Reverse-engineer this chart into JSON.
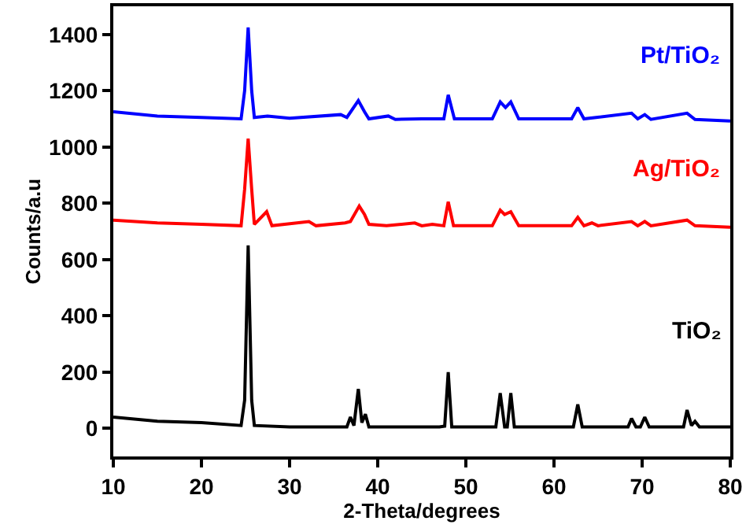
{
  "chart_data": {
    "type": "line",
    "xlabel": "2-Theta/degrees",
    "ylabel": "Counts/a.u",
    "xlim": [
      10,
      80
    ],
    "xticks": [
      10,
      20,
      30,
      40,
      50,
      60,
      70,
      80
    ],
    "ylim": [
      -100,
      1500
    ],
    "yticks": [
      0,
      200,
      400,
      600,
      800,
      1000,
      1200,
      1400
    ],
    "legend": false,
    "marker": "none",
    "line_style": "solid",
    "series": [
      {
        "name": "Pt/TiO₂",
        "color": "#0000ff",
        "x": [
          10,
          15,
          20,
          24.5,
          24.9,
          25.3,
          25.7,
          26,
          27.5,
          30,
          35.8,
          36.5,
          37.8,
          38.5,
          39,
          41.2,
          42,
          45,
          47.5,
          48,
          48.7,
          53,
          53.9,
          54.5,
          55.1,
          56,
          62,
          62.7,
          63.4,
          68.8,
          69.5,
          70.3,
          71,
          75.1,
          76,
          80
        ],
        "values": [
          1125,
          1110,
          1105,
          1100,
          1200,
          1425,
          1200,
          1105,
          1110,
          1102,
          1115,
          1105,
          1165,
          1125,
          1100,
          1110,
          1098,
          1100,
          1100,
          1185,
          1100,
          1100,
          1160,
          1140,
          1160,
          1100,
          1100,
          1140,
          1100,
          1120,
          1100,
          1115,
          1098,
          1120,
          1098,
          1092
        ]
      },
      {
        "name": "Ag/TiO₂",
        "color": "#ff0000",
        "x": [
          10,
          15,
          20,
          24.5,
          24.9,
          25.3,
          25.7,
          26,
          27.4,
          28,
          32.2,
          33,
          36.3,
          36.9,
          37.9,
          38.5,
          39,
          41,
          44.2,
          45,
          46.2,
          47.5,
          48,
          48.6,
          53,
          53.9,
          54.4,
          55.1,
          56,
          62,
          62.7,
          63.4,
          64.3,
          65,
          68.8,
          69.5,
          70.3,
          71,
          75.1,
          76,
          80
        ],
        "values": [
          740,
          730,
          725,
          720,
          850,
          1030,
          850,
          725,
          770,
          720,
          735,
          720,
          730,
          735,
          790,
          760,
          725,
          720,
          730,
          720,
          725,
          720,
          805,
          720,
          720,
          775,
          760,
          770,
          720,
          720,
          750,
          720,
          730,
          720,
          735,
          720,
          735,
          720,
          740,
          720,
          715
        ]
      },
      {
        "name": "TiO₂",
        "color": "#000000",
        "x": [
          10,
          15,
          20,
          24.5,
          24.9,
          25.3,
          25.7,
          26,
          30,
          36.5,
          36.9,
          37.3,
          37.8,
          38.2,
          38.6,
          39,
          47,
          47.6,
          48,
          48.4,
          53.4,
          53.9,
          54.4,
          54.7,
          55.1,
          55.5,
          62.2,
          62.7,
          63.2,
          68.4,
          68.8,
          69.3,
          69.8,
          70.3,
          70.8,
          74.7,
          75.1,
          75.6,
          76,
          76.5,
          80
        ],
        "values": [
          40,
          25,
          20,
          10,
          100,
          650,
          100,
          10,
          5,
          5,
          40,
          10,
          140,
          20,
          50,
          5,
          5,
          8,
          200,
          5,
          5,
          125,
          5,
          5,
          125,
          5,
          5,
          85,
          5,
          5,
          35,
          5,
          5,
          40,
          5,
          5,
          65,
          10,
          25,
          5,
          5
        ]
      }
    ]
  }
}
